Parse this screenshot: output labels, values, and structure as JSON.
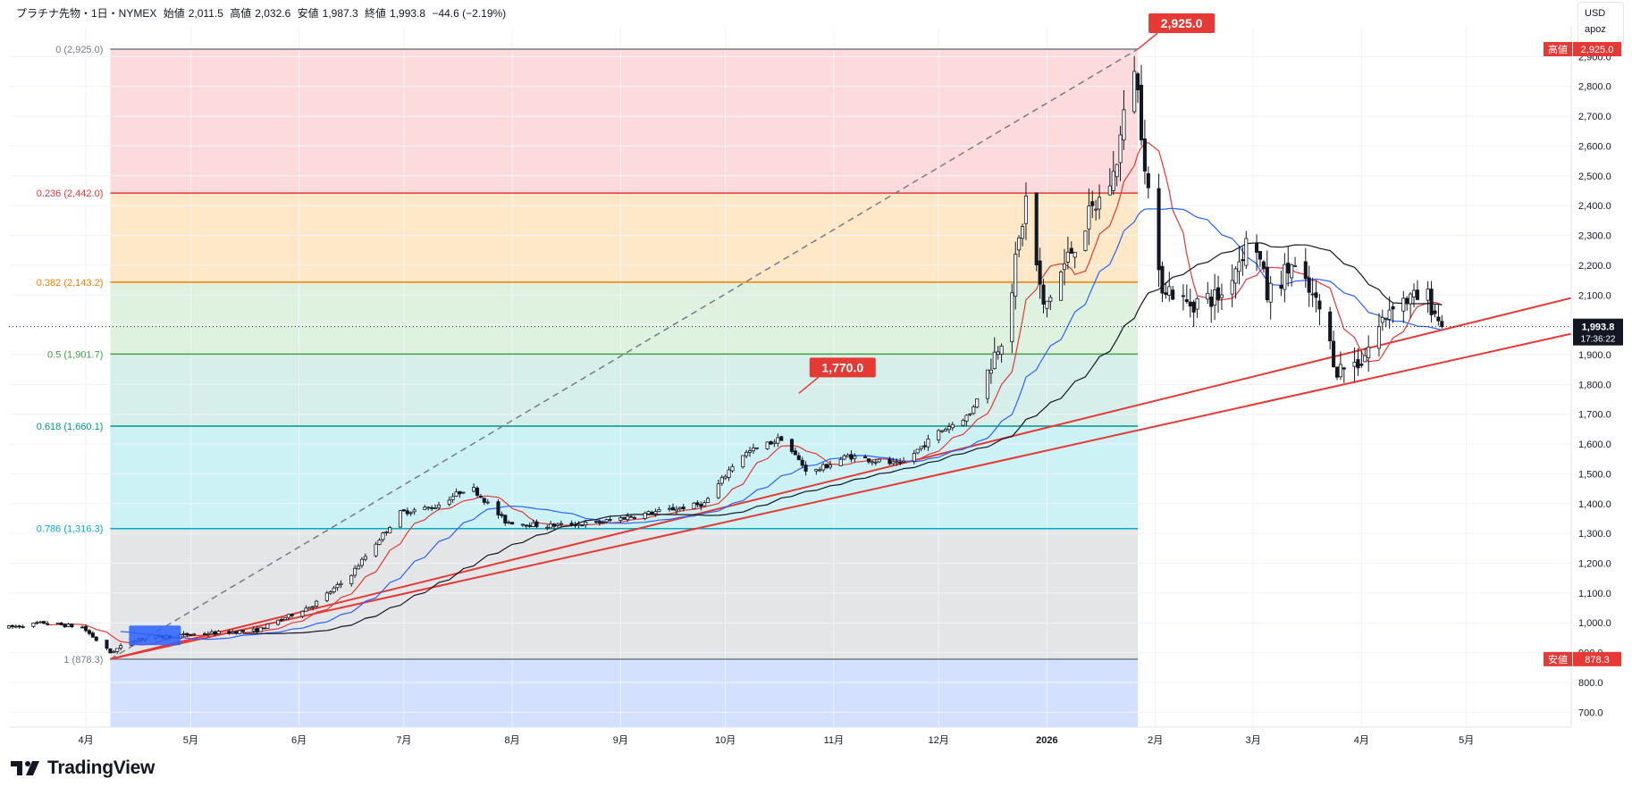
{
  "header": {
    "symbol": "プラチナ先物・1日・NYMEX",
    "open_label": "始値",
    "open": "2,011.5",
    "high_label": "高値",
    "high": "2,032.6",
    "low_label": "安値",
    "low": "1,987.3",
    "close_label": "終値",
    "close": "1,993.8",
    "change": "−44.6 (−2.19%)"
  },
  "currency_box": {
    "currency": "USD",
    "user": "apoz"
  },
  "brand": {
    "name": "TradingView"
  },
  "colors": {
    "up": "#ffffff",
    "down": "#131722",
    "ma_short": "#e53935",
    "ma_mid": "#2962ff",
    "ma_long": "#131722",
    "trendline": "#e53935",
    "label_red": "#e53935",
    "price_tag": "#131722"
  },
  "chart_data": {
    "type": "candlestick",
    "title": "プラチナ先物・1日・NYMEX",
    "ylim": [
      650,
      3000
    ],
    "y_ticks": [
      700,
      800,
      900,
      1000,
      1100,
      1200,
      1300,
      1400,
      1500,
      1600,
      1700,
      1800,
      1900,
      2000,
      2100,
      2200,
      2300,
      2400,
      2500,
      2600,
      2700,
      2800,
      2900
    ],
    "y_tick_labels": [
      "700.0",
      "800.0",
      "900.0",
      "1,000.0",
      "1,100.0",
      "1,200.0",
      "1,300.0",
      "1,400.0",
      "1,500.0",
      "1,600.0",
      "1,700.0",
      "1,800.0",
      "1,900.0",
      "2,000.0",
      "2,100.0",
      "2,200.0",
      "2,300.0",
      "2,400.0",
      "2,500.0",
      "2,600.0",
      "2,700.0",
      "2,800.0",
      "2,900.0"
    ],
    "x_range": [
      "2025-03-10",
      "2026-05-31"
    ],
    "x_ticks": [
      {
        "date": "2025-04-01",
        "label": "4月"
      },
      {
        "date": "2025-05-01",
        "label": "5月"
      },
      {
        "date": "2025-06-01",
        "label": "6月"
      },
      {
        "date": "2025-07-01",
        "label": "7月"
      },
      {
        "date": "2025-08-01",
        "label": "8月"
      },
      {
        "date": "2025-09-01",
        "label": "9月"
      },
      {
        "date": "2025-10-01",
        "label": "10月"
      },
      {
        "date": "2025-11-01",
        "label": "11月"
      },
      {
        "date": "2025-12-01",
        "label": "12月"
      },
      {
        "date": "2026-01-01",
        "label": "2026"
      },
      {
        "date": "2026-02-01",
        "label": "2月"
      },
      {
        "date": "2026-03-01",
        "label": "3月"
      },
      {
        "date": "2026-04-01",
        "label": "4月"
      },
      {
        "date": "2026-05-01",
        "label": "5月"
      }
    ],
    "price_path": [
      [
        "2025-03-10",
        985
      ],
      [
        "2025-03-20",
        1000
      ],
      [
        "2025-03-31",
        985
      ],
      [
        "2025-04-08",
        900
      ],
      [
        "2025-04-15",
        945
      ],
      [
        "2025-04-30",
        960
      ],
      [
        "2025-05-20",
        975
      ],
      [
        "2025-06-05",
        1060
      ],
      [
        "2025-06-15",
        1150
      ],
      [
        "2025-06-30",
        1370
      ],
      [
        "2025-07-10",
        1390
      ],
      [
        "2025-07-20",
        1460
      ],
      [
        "2025-07-30",
        1340
      ],
      [
        "2025-08-10",
        1325
      ],
      [
        "2025-08-25",
        1335
      ],
      [
        "2025-09-05",
        1360
      ],
      [
        "2025-09-25",
        1400
      ],
      [
        "2025-10-05",
        1560
      ],
      [
        "2025-10-17",
        1620
      ],
      [
        "2025-10-25",
        1500
      ],
      [
        "2025-11-05",
        1560
      ],
      [
        "2025-11-20",
        1530
      ],
      [
        "2025-12-01",
        1640
      ],
      [
        "2025-12-10",
        1700
      ],
      [
        "2025-12-20",
        1990
      ],
      [
        "2025-12-26",
        2420
      ],
      [
        "2025-12-31",
        2050
      ],
      [
        "2026-01-10",
        2300
      ],
      [
        "2026-01-20",
        2500
      ],
      [
        "2026-01-26",
        2880
      ],
      [
        "2026-01-30",
        2450
      ],
      [
        "2026-02-02",
        2150
      ],
      [
        "2026-02-10",
        2070
      ],
      [
        "2026-02-20",
        2100
      ],
      [
        "2026-03-01",
        2320
      ],
      [
        "2026-03-05",
        2100
      ],
      [
        "2026-03-12",
        2200
      ],
      [
        "2026-03-20",
        2050
      ],
      [
        "2026-03-25",
        1850
      ],
      [
        "2026-04-01",
        1880
      ],
      [
        "2026-04-10",
        2080
      ],
      [
        "2026-04-20",
        2090
      ],
      [
        "2026-04-24",
        1994
      ]
    ],
    "fibonacci": {
      "start_date": "2025-04-08",
      "end_date": "2026-01-27",
      "levels": [
        {
          "ratio": "0",
          "price": 2925.0,
          "label": "0 (2,925.0)",
          "color": "#787b86",
          "fill": "rgba(242,54,69,0.18)"
        },
        {
          "ratio": "0.236",
          "price": 2442.0,
          "label": "0.236 (2,442.0)",
          "color": "#e53935",
          "fill": "rgba(255,152,0,0.22)"
        },
        {
          "ratio": "0.382",
          "price": 2143.2,
          "label": "0.382 (2,143.2)",
          "color": "#f57c00",
          "fill": "rgba(76,175,80,0.18)"
        },
        {
          "ratio": "0.5",
          "price": 1901.7,
          "label": "0.5 (1,901.7)",
          "color": "#43a047",
          "fill": "rgba(8,153,129,0.16)"
        },
        {
          "ratio": "0.618",
          "price": 1660.1,
          "label": "0.618 (1,660.1)",
          "color": "#009688",
          "fill": "rgba(0,188,212,0.20)"
        },
        {
          "ratio": "0.786",
          "price": 1316.3,
          "label": "0.786 (1,316.3)",
          "color": "#00acc1",
          "fill": "rgba(120,123,134,0.20)"
        },
        {
          "ratio": "1",
          "price": 878.3,
          "label": "1 (878.3)",
          "color": "#787b86",
          "fill": "rgba(41,98,255,0.20)"
        }
      ],
      "floor_price": 650
    },
    "trend_diagonal": {
      "from": [
        "2025-04-08",
        878.3
      ],
      "to": [
        "2026-01-27",
        2925.0
      ]
    },
    "trendlines": [
      {
        "from": [
          "2025-04-08",
          878.3
        ],
        "to": [
          "2026-05-31",
          2090
        ]
      },
      {
        "from": [
          "2025-04-08",
          878.3
        ],
        "to": [
          "2026-05-31",
          1970
        ]
      }
    ],
    "annotations": [
      {
        "text": "2,925.0",
        "date": "2026-01-27",
        "price": 2925.0
      },
      {
        "text": "1,770.0",
        "date": "2025-10-22",
        "price": 1770.0
      }
    ],
    "marker": {
      "date": "2025-04-20",
      "price": 955
    },
    "high_tag": {
      "label": "高値",
      "value": "2,925.0",
      "price": 2925.0
    },
    "low_tag": {
      "label": "安値",
      "value": "878.3",
      "price": 878.3
    },
    "last_price": {
      "value": "1,993.8",
      "countdown": "17:36:22",
      "price": 1993.8
    }
  }
}
